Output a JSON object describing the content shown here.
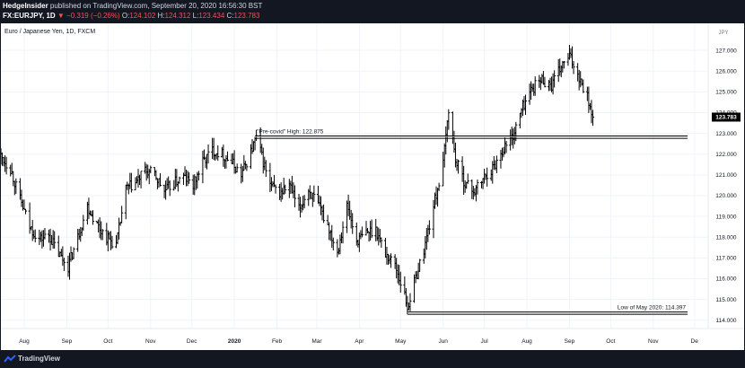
{
  "header": {
    "publisher": "HedgeInsider",
    "published_text": " published on TradingView.com, September 20, 2020 16:56:30 BST",
    "symbol": "FX:EURJPY, 1D",
    "change": "▼ −0.319 (−0.26%)",
    "o_label": "O:",
    "o_value": "124.102",
    "h_label": "H:",
    "h_value": "124.312",
    "l_label": "L:",
    "l_value": "123.434",
    "c_label": "C:",
    "c_value": "123.783"
  },
  "chart_title": "Euro / Japanese Yen, 1D, FXCM",
  "footer": {
    "brand": "TradingView"
  },
  "chart_data": {
    "type": "ohlc",
    "title": "Euro / Japanese Yen, 1D, FXCM",
    "currency": "JPY",
    "ylim": [
      113.6,
      128.3
    ],
    "yticks": [
      114.0,
      115.0,
      116.0,
      117.0,
      118.0,
      119.0,
      120.0,
      121.0,
      122.0,
      123.0,
      124.0,
      125.0,
      126.0,
      127.0
    ],
    "ytick_labels": [
      "114.000",
      "115.000",
      "116.000",
      "117.000",
      "118.000",
      "119.000",
      "120.000",
      "121.000",
      "122.000",
      "123.000",
      "124.000",
      "125.000",
      "126.000",
      "127.000"
    ],
    "xticks": [
      "Aug",
      "Sep",
      "Oct",
      "Nov",
      "Dec",
      "2020",
      "Feb",
      "Mar",
      "Apr",
      "May",
      "Jun",
      "Jul",
      "Aug",
      "Sep",
      "Oct",
      "Nov",
      "De"
    ],
    "last_price": 123.783,
    "last_price_label": "123.783",
    "colors": {
      "background": "#ffffff",
      "bars": "#000000",
      "grid": "#f0f3fa",
      "levels": "#000000",
      "last_price_bg": "#000000"
    },
    "x_range": [
      "2019-07-15",
      "2020-12-11"
    ],
    "levels": [
      {
        "label": "\"Pre-covid\" High: 122.875",
        "value": 122.875,
        "start": "2020-01-16",
        "end": "2020-11-26"
      },
      {
        "label": "Low of May 2020: 114.397",
        "value": 114.397,
        "start": "2020-05-06",
        "end": "2020-11-26"
      }
    ],
    "series_anchors": [
      [
        "2019-07-15",
        121.9
      ],
      [
        "2019-07-22",
        121.3
      ],
      [
        "2019-07-29",
        119.8
      ],
      [
        "2019-08-05",
        118.5
      ],
      [
        "2019-08-12",
        117.9
      ],
      [
        "2019-08-19",
        118.1
      ],
      [
        "2019-08-26",
        117.2
      ],
      [
        "2019-09-02",
        116.6
      ],
      [
        "2019-09-09",
        118.0
      ],
      [
        "2019-09-16",
        119.5
      ],
      [
        "2019-09-23",
        118.6
      ],
      [
        "2019-09-30",
        118.0
      ],
      [
        "2019-10-07",
        117.6
      ],
      [
        "2019-10-14",
        120.3
      ],
      [
        "2019-10-21",
        120.6
      ],
      [
        "2019-10-28",
        121.2
      ],
      [
        "2019-11-04",
        121.0
      ],
      [
        "2019-11-11",
        120.2
      ],
      [
        "2019-11-18",
        120.6
      ],
      [
        "2019-11-25",
        120.9
      ],
      [
        "2019-12-02",
        120.5
      ],
      [
        "2019-12-09",
        121.6
      ],
      [
        "2019-12-16",
        122.2
      ],
      [
        "2019-12-23",
        122.0
      ],
      [
        "2019-12-30",
        121.6
      ],
      [
        "2020-01-06",
        121.0
      ],
      [
        "2020-01-13",
        122.1
      ],
      [
        "2020-01-17",
        122.8
      ],
      [
        "2020-01-27",
        120.5
      ],
      [
        "2020-02-03",
        120.1
      ],
      [
        "2020-02-10",
        120.5
      ],
      [
        "2020-02-17",
        119.3
      ],
      [
        "2020-02-24",
        120.3
      ],
      [
        "2020-03-02",
        119.5
      ],
      [
        "2020-03-09",
        118.6
      ],
      [
        "2020-03-16",
        117.3
      ],
      [
        "2020-03-23",
        119.5
      ],
      [
        "2020-03-30",
        117.8
      ],
      [
        "2020-04-06",
        118.2
      ],
      [
        "2020-04-13",
        118.4
      ],
      [
        "2020-04-20",
        117.2
      ],
      [
        "2020-04-27",
        116.7
      ],
      [
        "2020-05-04",
        115.2
      ],
      [
        "2020-05-06",
        114.6
      ],
      [
        "2020-05-11",
        115.8
      ],
      [
        "2020-05-18",
        117.4
      ],
      [
        "2020-05-25",
        119.5
      ],
      [
        "2020-06-01",
        121.5
      ],
      [
        "2020-06-05",
        124.2
      ],
      [
        "2020-06-10",
        121.7
      ],
      [
        "2020-06-17",
        120.6
      ],
      [
        "2020-06-24",
        120.2
      ],
      [
        "2020-07-01",
        120.9
      ],
      [
        "2020-07-08",
        121.4
      ],
      [
        "2020-07-15",
        122.3
      ],
      [
        "2020-07-22",
        122.9
      ],
      [
        "2020-07-29",
        124.3
      ],
      [
        "2020-08-05",
        125.2
      ],
      [
        "2020-08-12",
        125.6
      ],
      [
        "2020-08-19",
        125.3
      ],
      [
        "2020-08-26",
        126.2
      ],
      [
        "2020-09-01",
        126.7
      ],
      [
        "2020-09-07",
        125.9
      ],
      [
        "2020-09-14",
        124.8
      ],
      [
        "2020-09-18",
        123.8
      ]
    ]
  }
}
